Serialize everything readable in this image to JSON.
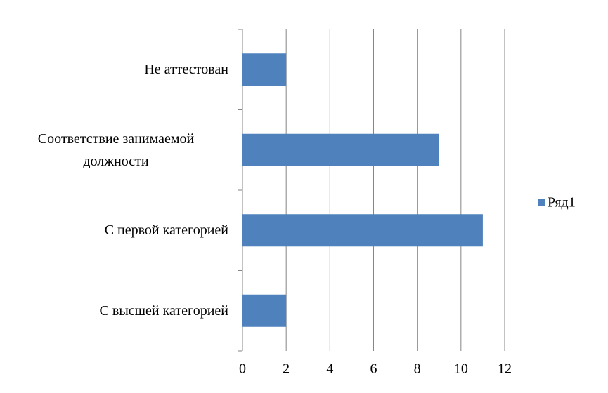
{
  "chart_data": {
    "type": "bar",
    "orientation": "horizontal",
    "categories": [
      "С высшей категорией",
      "С первой категорией",
      "Соответствие занимаемой должности",
      "Не аттестован"
    ],
    "series": [
      {
        "name": "Ряд1",
        "color": "#4f81bd",
        "values": [
          2,
          11,
          9,
          2
        ]
      }
    ],
    "xlim": [
      0,
      12
    ],
    "xticks": [
      0,
      2,
      4,
      6,
      8,
      10,
      12
    ],
    "grid": true,
    "legend": "right"
  }
}
